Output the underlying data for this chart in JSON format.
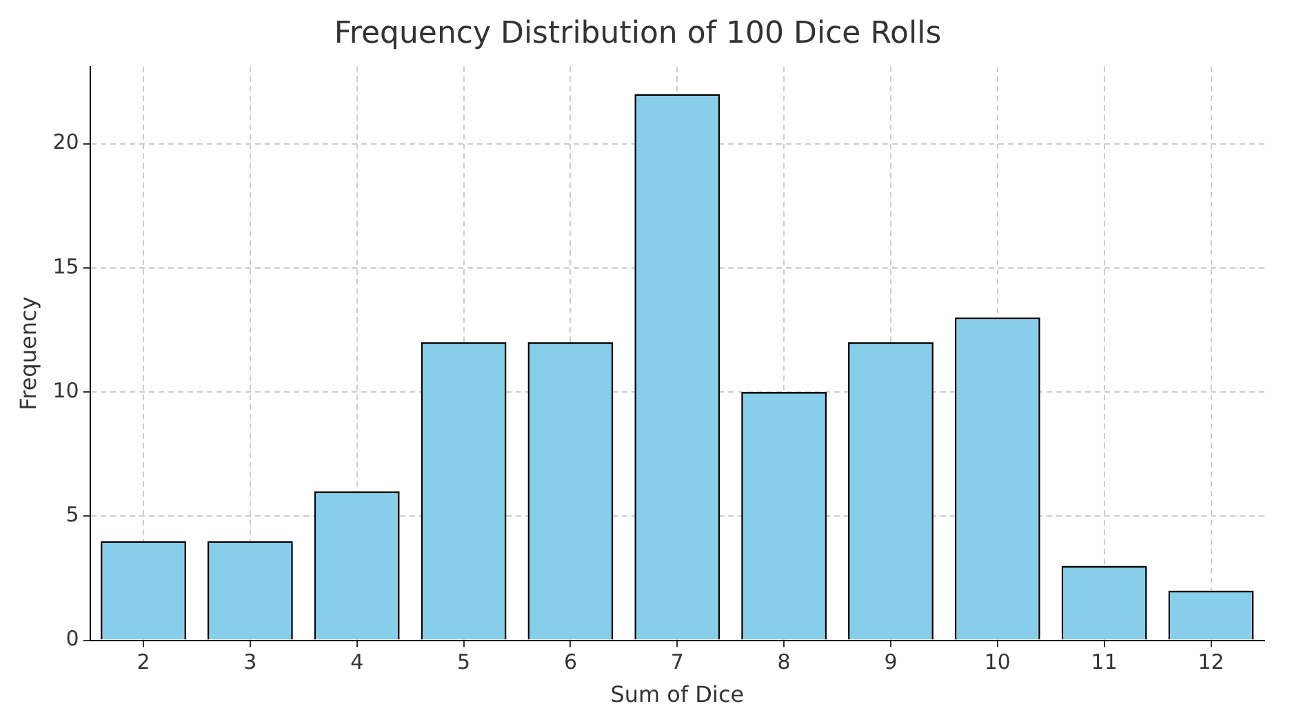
{
  "chart_data": {
    "type": "bar",
    "title": "Frequency Distribution of 100 Dice Rolls",
    "xlabel": "Sum of Dice",
    "ylabel": "Frequency",
    "categories": [
      "2",
      "3",
      "4",
      "5",
      "6",
      "7",
      "8",
      "9",
      "10",
      "11",
      "12"
    ],
    "values": [
      4,
      4,
      6,
      12,
      12,
      22,
      10,
      12,
      13,
      3,
      2
    ],
    "color": "#87ceeb",
    "ylim": [
      0,
      23.1
    ],
    "yticks": [
      0,
      5,
      10,
      15,
      20
    ],
    "grid": true,
    "legend": false
  }
}
